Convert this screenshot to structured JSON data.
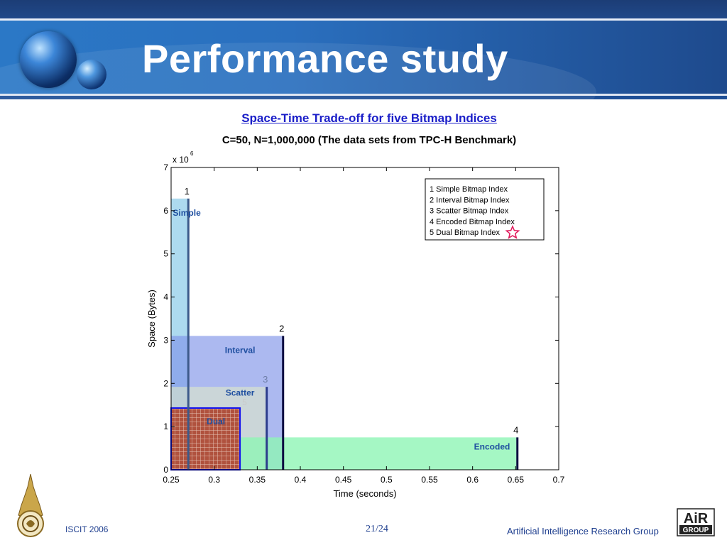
{
  "slide": {
    "title": "Performance study",
    "footer_left": "ISCIT  2006",
    "page_number": "21/24",
    "footer_right": "Artificial Intelligence Research Group",
    "logo_text": "AIR GROUP"
  },
  "chart_data": {
    "type": "area",
    "title": "Space-Time Trade-off for five Bitmap Indices",
    "subtitle": "C=50, N=1,000,000  (The data sets from TPC-H Benchmark)",
    "xlabel": "Time (seconds)",
    "ylabel": "Space (Bytes)",
    "y_multiplier": "x 10",
    "y_multiplier_exp": "6",
    "xlim": [
      0.25,
      0.7
    ],
    "ylim": [
      0,
      7
    ],
    "xticks": [
      "0.25",
      "0.3",
      "0.35",
      "0.4",
      "0.45",
      "0.5",
      "0.55",
      "0.6",
      "0.65",
      "0.7"
    ],
    "yticks": [
      "0",
      "1",
      "2",
      "3",
      "4",
      "5",
      "6",
      "7"
    ],
    "grid": false,
    "legend_position": "top-right",
    "legend": [
      "1 Simple Bitmap Index",
      "2 Interval Bitmap Index",
      "3 Scatter Bitmap Index",
      "4 Encoded Bitmap Index",
      "5 Dual Bitmap Index"
    ],
    "series": [
      {
        "number": "1",
        "name": "Simple",
        "time": 0.27,
        "space": 6.28,
        "color": "#9fd3ec"
      },
      {
        "number": "2",
        "name": "Interval",
        "time": 0.38,
        "space": 3.1,
        "color": "#7f93e8"
      },
      {
        "number": "3",
        "name": "Scatter",
        "time": 0.361,
        "space": 1.92,
        "color": "#e6efc4"
      },
      {
        "number": "4",
        "name": "Encoded",
        "time": 0.652,
        "space": 0.75,
        "color": "#8ff5b5"
      },
      {
        "number": "5",
        "name": "Dual",
        "time": 0.33,
        "space": 1.43,
        "color": "#b0523e"
      }
    ],
    "highlight_series": "5"
  }
}
